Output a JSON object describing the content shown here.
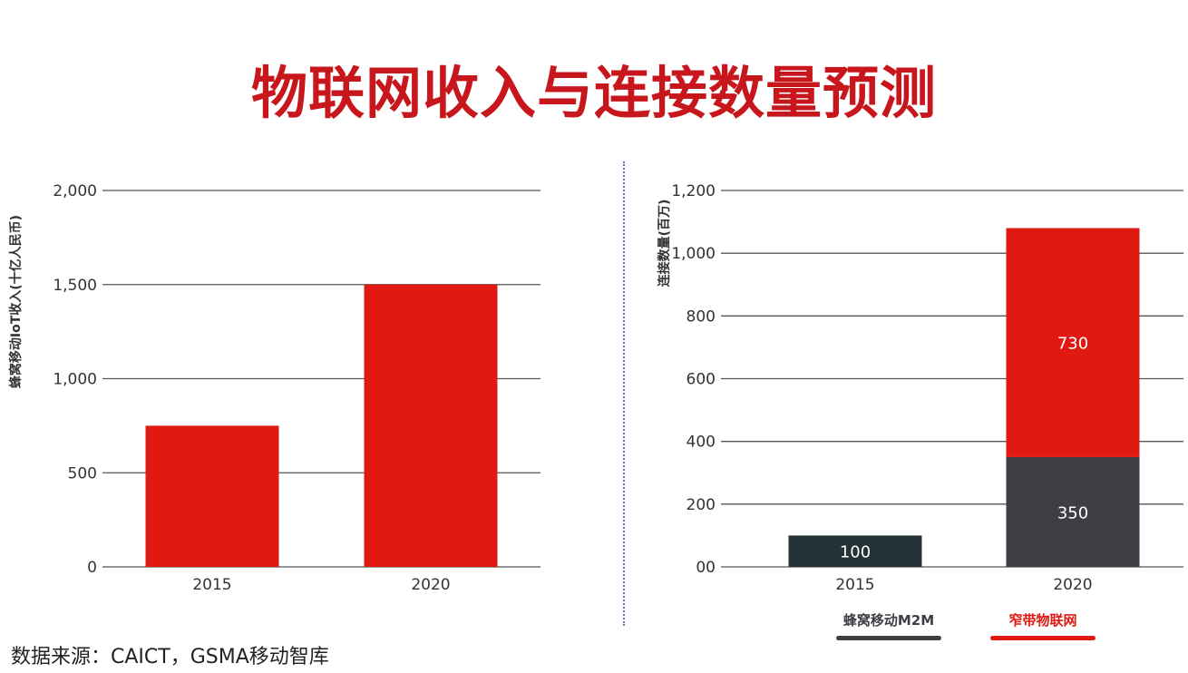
{
  "page": {
    "title": "物联网收入与连接数量预测",
    "source": "数据来源：CAICT，GSMA移动智库"
  },
  "colors": {
    "red": "#e01a12",
    "dark_gray": "#3d3f44",
    "dark_teal": "#243237",
    "title_red": "#c8161d"
  },
  "chart_data": [
    {
      "type": "bar",
      "categories": [
        "2015",
        "2020"
      ],
      "values": [
        750,
        1500
      ],
      "ylabel": "蜂窝移动IoT收入(十亿人民币)",
      "ylim": [
        0,
        2000
      ],
      "yticks": [
        0,
        500,
        1000,
        1500,
        2000
      ],
      "ytick_labels": [
        "0",
        "500",
        "1,000",
        "1,500",
        "2,000"
      ],
      "bar_color": "#e01a12",
      "grid": true
    },
    {
      "type": "bar",
      "stacked": true,
      "categories": [
        "2015",
        "2020"
      ],
      "series": [
        {
          "name": "蜂窝移动M2M",
          "values": [
            100,
            350
          ],
          "colors": [
            "#243237",
            "#3d3f44"
          ],
          "labels": [
            "100",
            "350"
          ]
        },
        {
          "name": "窄带物联网",
          "values": [
            0,
            730
          ],
          "colors": [
            "#e01a12",
            "#e01a12"
          ],
          "labels": [
            "",
            "730"
          ]
        }
      ],
      "ylabel": "连接数量(百万)",
      "ylim": [
        0,
        1200
      ],
      "yticks": [
        0,
        200,
        400,
        600,
        800,
        1000,
        1200
      ],
      "ytick_labels": [
        "00",
        "200",
        "400",
        "600",
        "800",
        "1,000",
        "1,200"
      ],
      "legend": [
        {
          "name": "蜂窝移动M2M",
          "color": "#3d3f44",
          "text_color": "#3d3f44"
        },
        {
          "name": "窄带物联网",
          "color": "#e01a12",
          "text_color": "#e01a12"
        }
      ],
      "legend_position": "bottom",
      "grid": true
    }
  ]
}
